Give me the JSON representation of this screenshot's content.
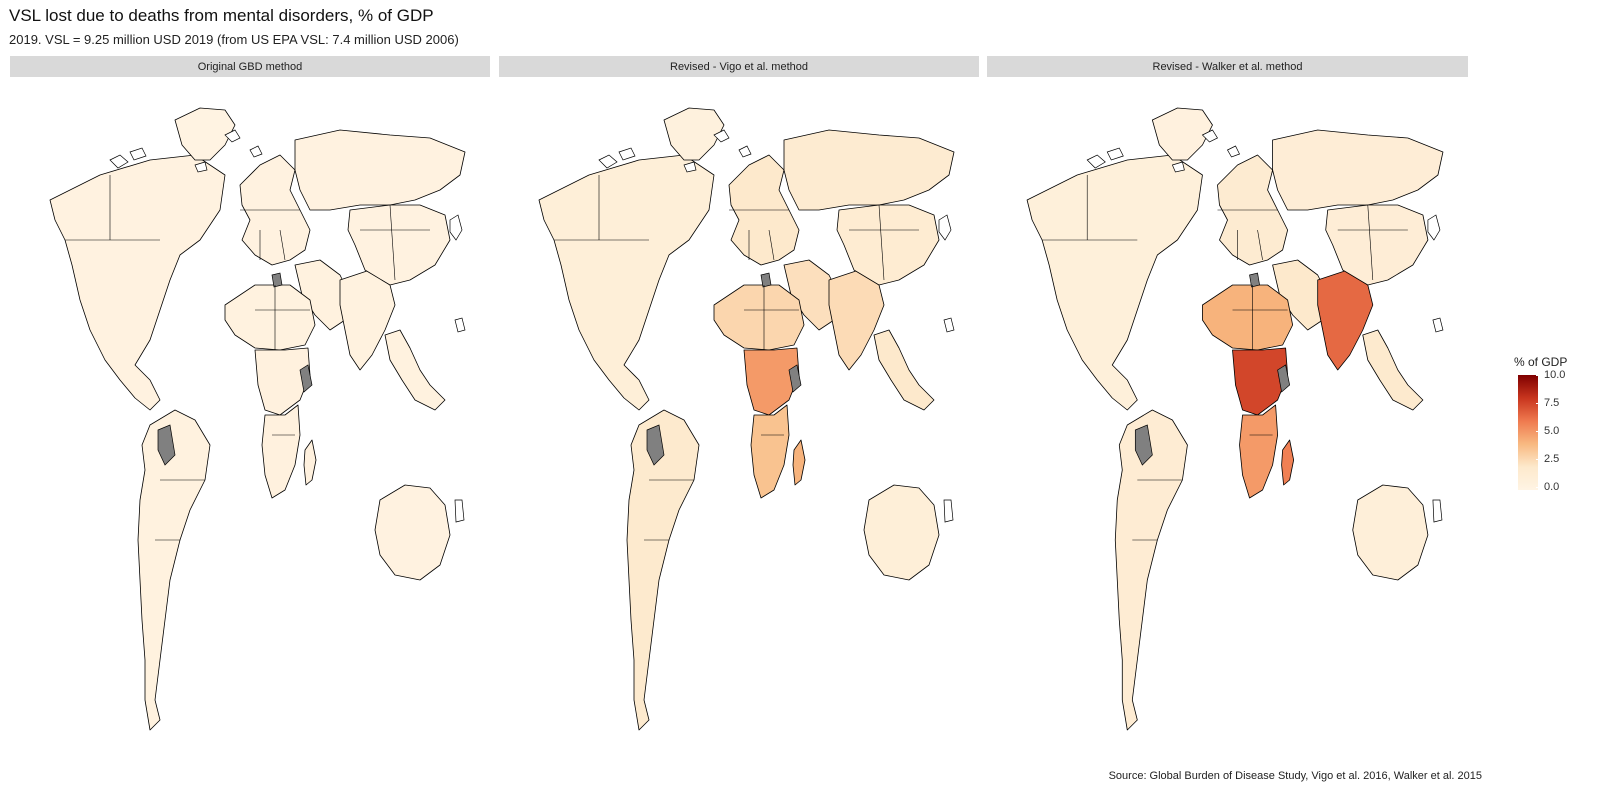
{
  "title": "VSL lost due to deaths from mental disorders, % of GDP",
  "subtitle": "2019. VSL = 9.25 million USD 2019 (from US EPA VSL: 7.4 million USD 2006)",
  "source": "Source: Global Burden of Disease Study, Vigo et al. 2016, Walker et al. 2015",
  "legend": {
    "title": "% of GDP",
    "ticks": [
      "10.0",
      "7.5",
      "5.0",
      "2.5",
      "0.0"
    ],
    "range": [
      0,
      10
    ],
    "colors": [
      "#fff4e4",
      "#fde9cc",
      "#f8b981",
      "#ef7a4f",
      "#c8351e",
      "#7f0000"
    ],
    "missing_color": "#808080"
  },
  "panels": [
    {
      "label": "Original GBD method",
      "regions": {
        "north-america": 0.3,
        "greenland": 0.2,
        "south-america": 0.4,
        "europe": 0.3,
        "russia": 0.3,
        "middle-east": 0.4,
        "africa-north": 0.4,
        "africa-central": 0.5,
        "africa-south": 0.5,
        "madagascar": 0.5,
        "south-asia": 0.4,
        "east-asia": 0.3,
        "southeast-asia": 0.4,
        "australia": 0.3
      }
    },
    {
      "label": "Revised - Vigo et al. method",
      "regions": {
        "north-america": 1.0,
        "greenland": 0.6,
        "south-america": 1.8,
        "europe": 2.0,
        "russia": 1.6,
        "middle-east": 2.4,
        "africa-north": 2.8,
        "africa-central": 5.0,
        "africa-south": 3.6,
        "madagascar": 4.2,
        "south-asia": 2.6,
        "east-asia": 1.5,
        "southeast-asia": 2.0,
        "australia": 1.0
      }
    },
    {
      "label": "Revised - Walker et al. method",
      "regions": {
        "north-america": 0.8,
        "greenland": 0.5,
        "south-america": 1.4,
        "europe": 1.6,
        "russia": 1.2,
        "middle-east": 2.0,
        "africa-north": 4.2,
        "africa-central": 7.5,
        "africa-south": 5.0,
        "madagascar": 5.8,
        "south-asia": 6.5,
        "east-asia": 1.2,
        "southeast-asia": 1.8,
        "australia": 0.9
      }
    }
  ]
}
